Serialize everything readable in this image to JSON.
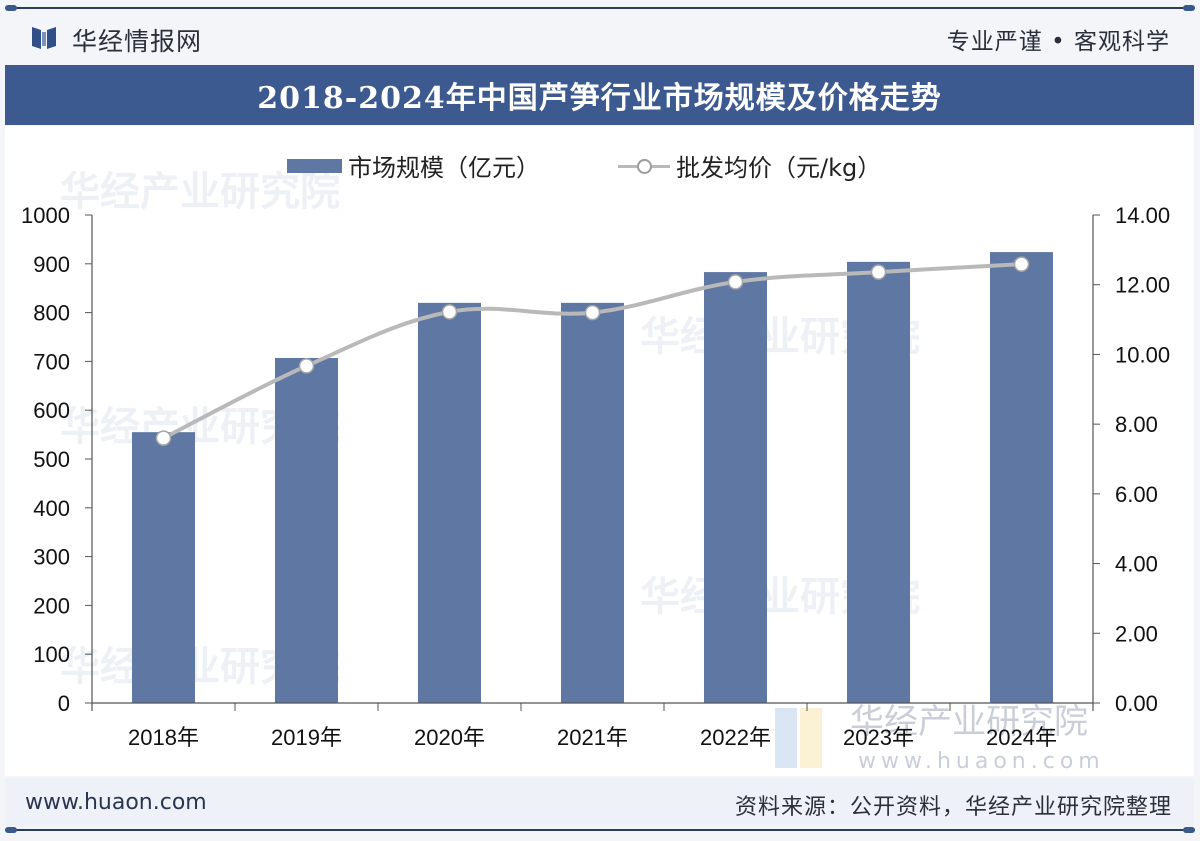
{
  "header": {
    "brand": "华经情报网",
    "slogan": "专业严谨 • 客观科学"
  },
  "footer": {
    "site": "www.huaon.com",
    "source": "资料来源：公开资料，华经产业研究院整理"
  },
  "watermark": {
    "text": "华经产业研究院",
    "url": "www.huaon.com"
  },
  "colors": {
    "title_bar": "#3c5a90",
    "bar": "#5f77a3",
    "line": "#b9b9b9",
    "marker_fill": "#ffffff"
  },
  "chart_data": {
    "type": "bar",
    "title": "2018-2024年中国芦笋行业市场规模及价格走势",
    "categories": [
      "2018年",
      "2019年",
      "2020年",
      "2021年",
      "2022年",
      "2023年",
      "2024年"
    ],
    "series": [
      {
        "name": "市场规模（亿元）",
        "type": "bar",
        "axis": "left",
        "values": [
          555,
          707,
          820,
          820,
          883,
          904,
          924
        ]
      },
      {
        "name": "批发均价（元/kg）",
        "type": "line",
        "axis": "right",
        "values": [
          7.6,
          9.67,
          11.22,
          11.2,
          12.08,
          12.36,
          12.59
        ]
      }
    ],
    "left_axis": {
      "label": "",
      "range": [
        0,
        1000
      ],
      "ticks": [
        "0",
        "100",
        "200",
        "300",
        "400",
        "500",
        "600",
        "700",
        "800",
        "900",
        "1000"
      ]
    },
    "right_axis": {
      "label": "",
      "range": [
        0,
        14
      ],
      "ticks": [
        "0.00",
        "2.00",
        "4.00",
        "6.00",
        "8.00",
        "10.00",
        "12.00",
        "14.00"
      ]
    },
    "xlabel": "",
    "grid": false,
    "legend": "top-center"
  }
}
